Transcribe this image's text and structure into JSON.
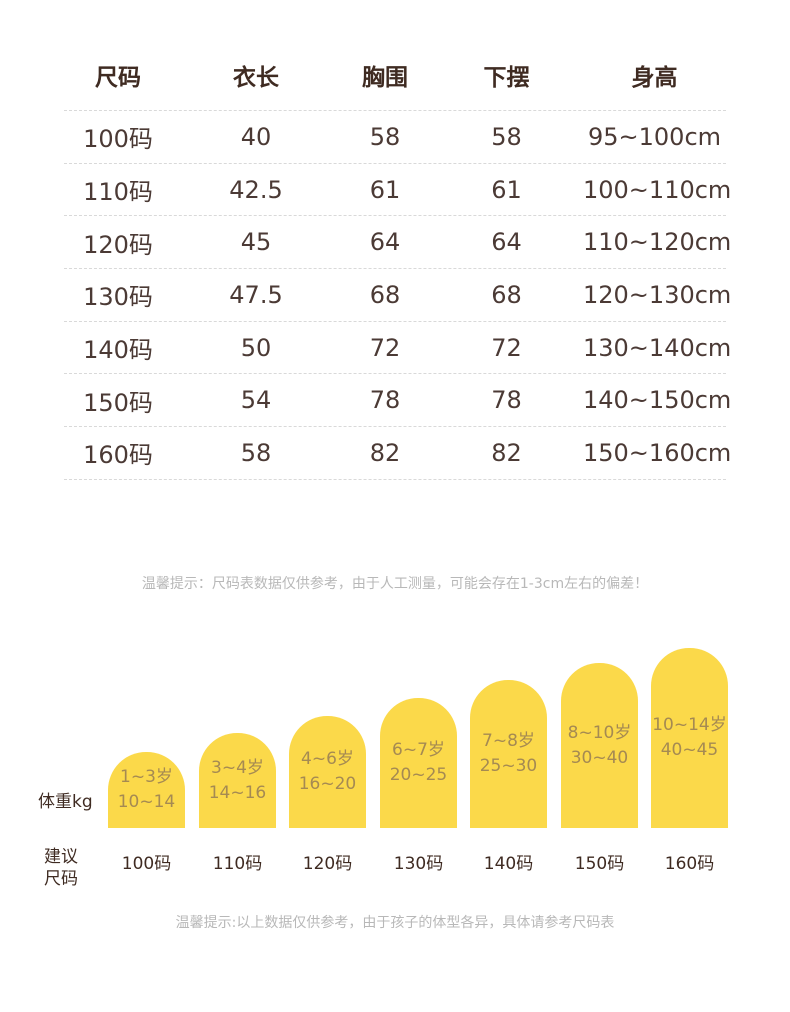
{
  "table": {
    "headers": [
      "尺码",
      "衣长",
      "胸围",
      "下摆",
      "身高"
    ],
    "rows": [
      [
        "100码",
        "40",
        "58",
        "58",
        "95~100cm"
      ],
      [
        "110码",
        "42.5",
        "61",
        "61",
        "100~110cm"
      ],
      [
        "120码",
        "45",
        "64",
        "64",
        "110~120cm"
      ],
      [
        "130码",
        "47.5",
        "68",
        "68",
        "120~130cm"
      ],
      [
        "140码",
        "50",
        "72",
        "72",
        "130~140cm"
      ],
      [
        "150码",
        "54",
        "78",
        "78",
        "140~150cm"
      ],
      [
        "160码",
        "58",
        "82",
        "82",
        "150~160cm"
      ]
    ]
  },
  "tip_1": "温馨提示：尺码表数据仅供参考，由于人工测量，可能会存在1-3cm左右的偏差！",
  "weight_chart": {
    "weight_label": "体重kg",
    "recommend_label_line1": "建议",
    "recommend_label_line2": "尺码",
    "bar_color": "#fbd94a",
    "items": [
      {
        "age": "1~3岁",
        "weight": "10~14",
        "size": "100码"
      },
      {
        "age": "3~4岁",
        "weight": "14~16",
        "size": "110码"
      },
      {
        "age": "4~6岁",
        "weight": "16~20",
        "size": "120码"
      },
      {
        "age": "6~7岁",
        "weight": "20~25",
        "size": "130码"
      },
      {
        "age": "7~8岁",
        "weight": "25~30",
        "size": "140码"
      },
      {
        "age": "8~10岁",
        "weight": "30~40",
        "size": "150码"
      },
      {
        "age": "10~14岁",
        "weight": "40~45",
        "size": "160码"
      }
    ]
  },
  "tip_2": "温馨提示:以上数据仅供参考，由于孩子的体型各异，具体请参考尺码表"
}
